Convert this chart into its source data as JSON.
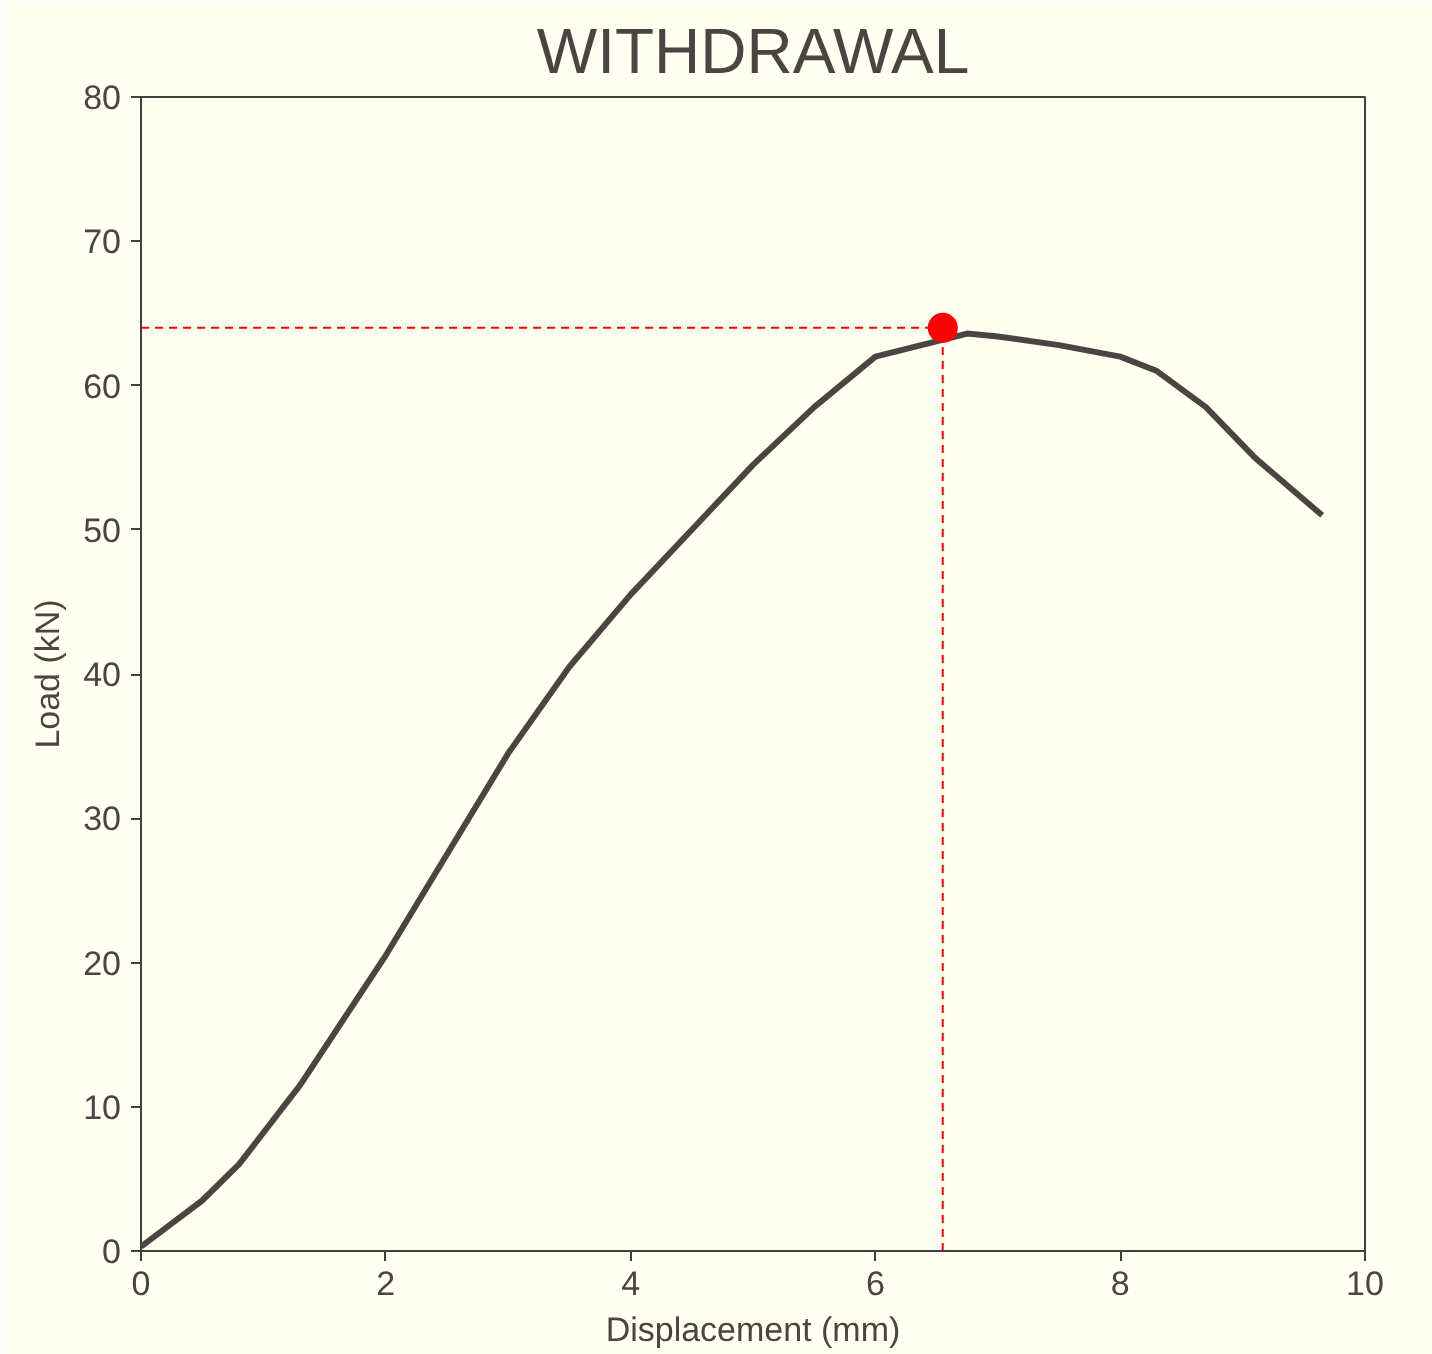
{
  "chart_data": {
    "type": "line",
    "title": "WITHDRAWAL",
    "xlabel": "Displacement (mm)",
    "ylabel": "Load (kN)",
    "xlim": [
      0,
      10
    ],
    "ylim": [
      0,
      80
    ],
    "xticks": [
      0,
      2,
      4,
      6,
      8,
      10
    ],
    "yticks": [
      0,
      10,
      20,
      30,
      40,
      50,
      60,
      70,
      80
    ],
    "grid": false,
    "series": [
      {
        "color": "#4a4540",
        "line_style": "solid",
        "x": [
          0,
          0.5,
          0.8,
          1.3,
          2,
          2.5,
          3,
          3.5,
          4,
          4.5,
          5,
          5.5,
          6,
          6.75,
          7,
          7.5,
          8,
          8.3,
          8.7,
          9.1,
          9.65
        ],
        "values": [
          0.3,
          3.5,
          6,
          11.5,
          20.5,
          27.5,
          34.5,
          40.5,
          45.5,
          50,
          54.5,
          58.5,
          62,
          63.6,
          63.4,
          62.8,
          62,
          61,
          58.5,
          55,
          51
        ]
      },
      {
        "type": "scatter",
        "color": "#ff0000",
        "marker": "circle",
        "x": [
          6.55
        ],
        "values": [
          64
        ]
      }
    ],
    "ref_lines": [
      {
        "axis": "x",
        "value": 6.55,
        "color": "#ff0000",
        "line_style": "dashed"
      },
      {
        "axis": "y",
        "value": 64,
        "color": "#ff0000",
        "line_style": "dashed"
      }
    ]
  }
}
